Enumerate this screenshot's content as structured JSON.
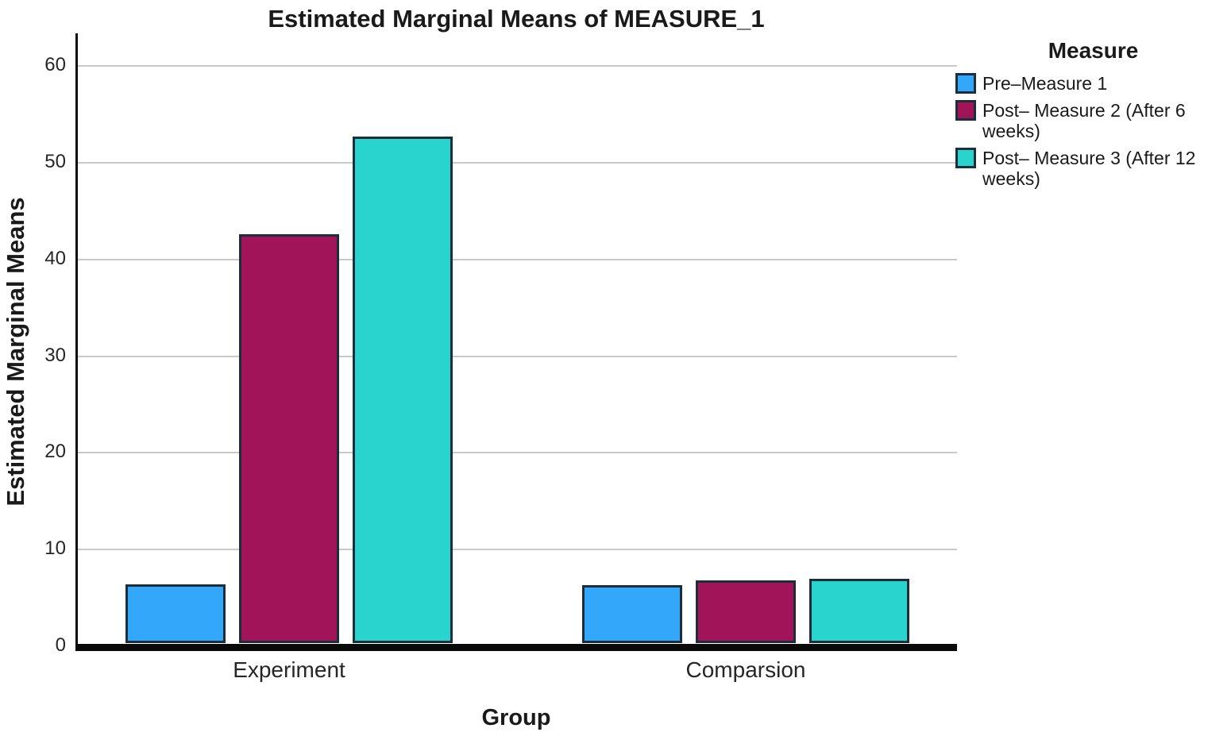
{
  "chart_data": {
    "type": "bar",
    "title": "Estimated Marginal Means of MEASURE_1",
    "xlabel": "Group",
    "ylabel": "Estimated Marginal Means",
    "categories": [
      "Experiment",
      "Comparsion"
    ],
    "series": [
      {
        "name": "Pre–Measure 1",
        "color": "#33a8fb",
        "values": [
          6.3,
          6.2
        ]
      },
      {
        "name": "Post– Measure 2 (After 6 weeks)",
        "color": "#a2145a",
        "values": [
          42.5,
          6.7
        ]
      },
      {
        "name": "Post– Measure 3 (After 12 weeks)",
        "color": "#29d4ce",
        "values": [
          52.6,
          6.9
        ]
      }
    ],
    "yticks": [
      0,
      10,
      20,
      30,
      40,
      50,
      60
    ],
    "ylim": [
      0,
      63.3
    ],
    "grid": true,
    "legend_title": "Measure",
    "legend_position": "top-right",
    "colors": {
      "gridline": "#c9c9c9",
      "axis": "#0a0a0a",
      "bar_border": "#1d2d39",
      "text": "#1a1a1a"
    }
  }
}
